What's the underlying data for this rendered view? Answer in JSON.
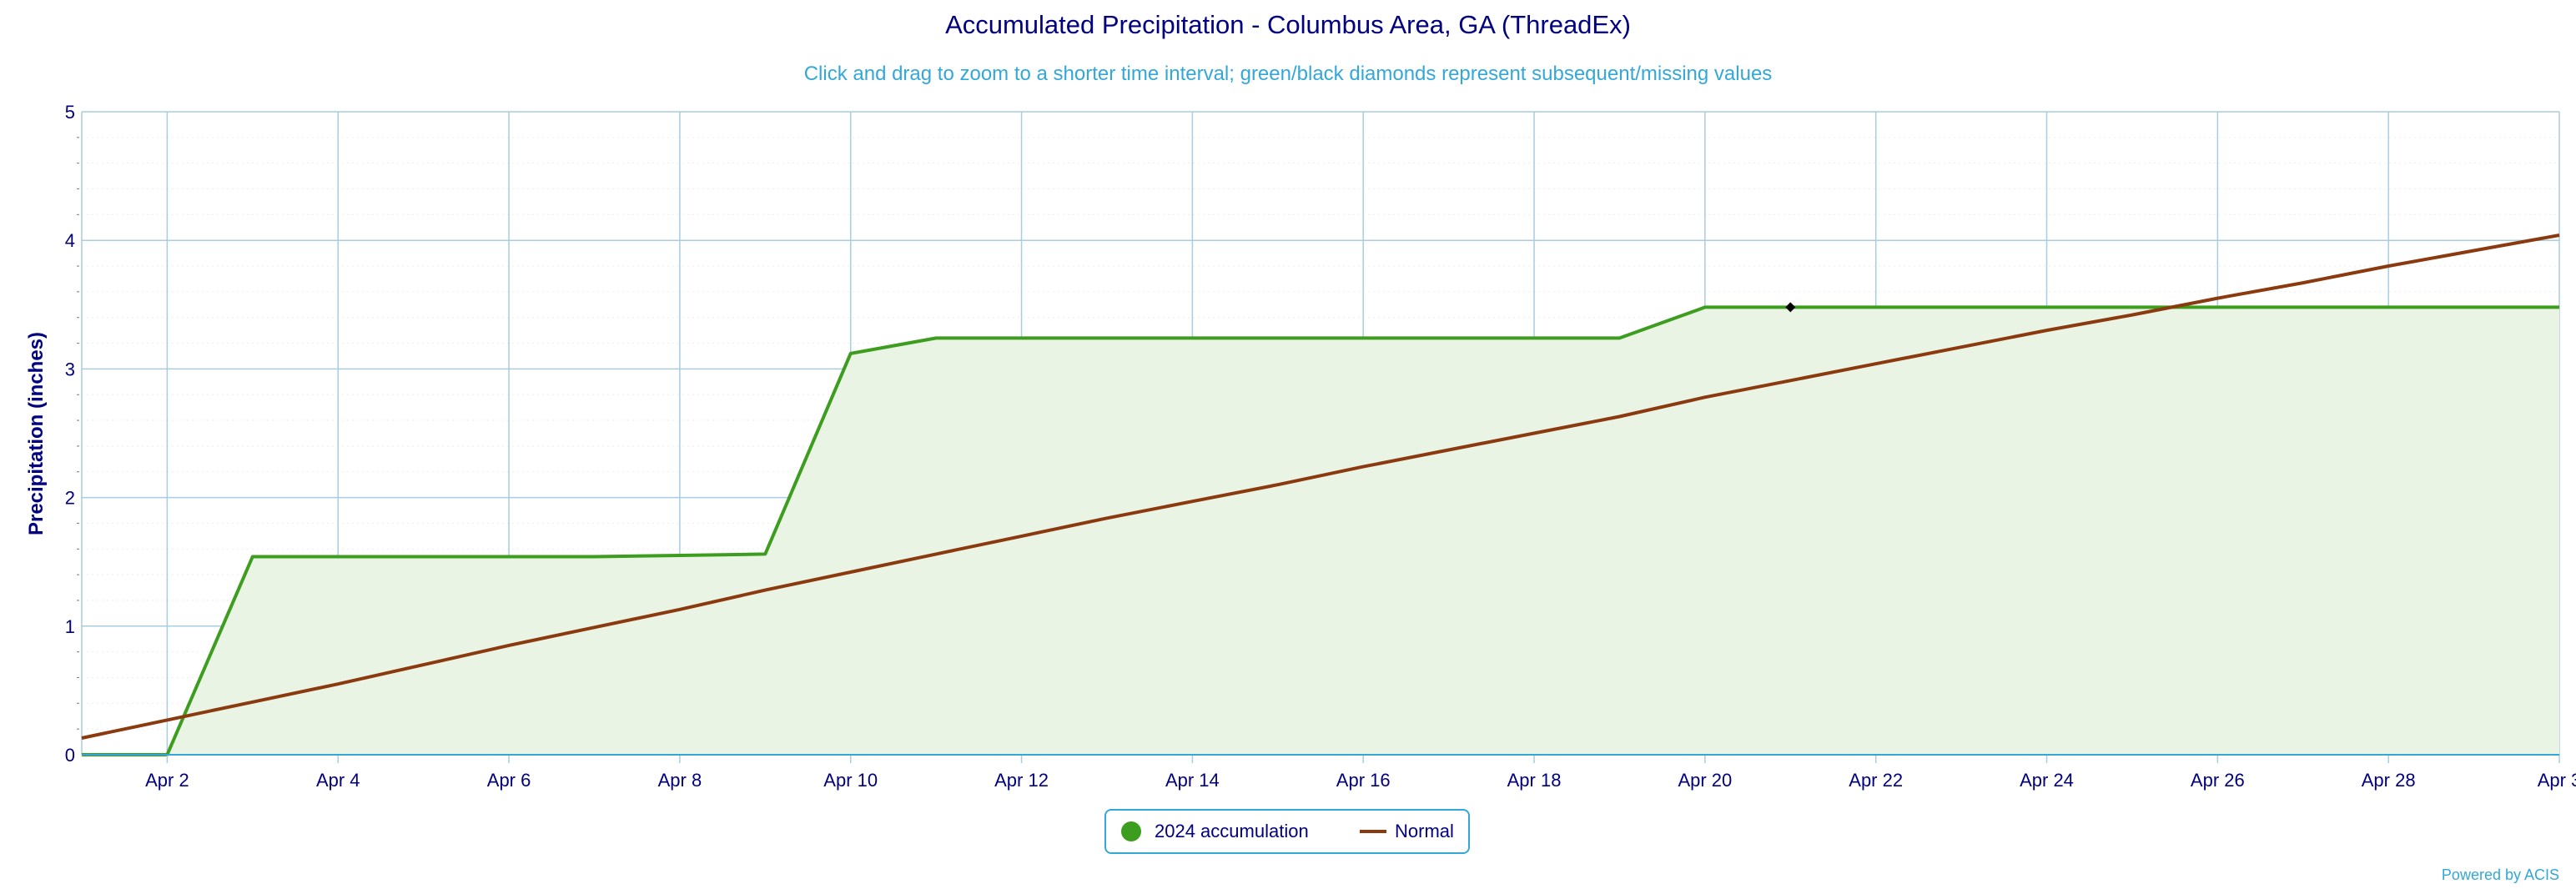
{
  "chart_data": {
    "type": "area",
    "title": "Accumulated Precipitation - Columbus Area, GA (ThreadEx)",
    "subtitle": "Click and drag to zoom to a shorter time interval; green/black diamonds represent subsequent/missing values",
    "ylabel": "Precipitation (inches)",
    "xlabel": "",
    "ylim": [
      0,
      5
    ],
    "yticks": [
      0,
      1,
      2,
      3,
      4,
      5
    ],
    "xlim": [
      1,
      30
    ],
    "xticks": [
      2,
      4,
      6,
      8,
      10,
      12,
      14,
      16,
      18,
      20,
      22,
      24,
      26,
      28,
      30
    ],
    "xtick_labels": [
      "Apr 2",
      "Apr 4",
      "Apr 6",
      "Apr 8",
      "Apr 10",
      "Apr 12",
      "Apr 14",
      "Apr 16",
      "Apr 18",
      "Apr 20",
      "Apr 22",
      "Apr 24",
      "Apr 26",
      "Apr 28",
      "Apr 3"
    ],
    "grid": true,
    "legend_position": "bottom-center",
    "series": [
      {
        "name": "2024 accumulation",
        "style": "area",
        "color": "#3c9d1f",
        "fill": "#e9f4e4",
        "x": [
          1,
          2,
          3,
          4,
          5,
          6,
          7,
          8,
          9,
          10,
          11,
          12,
          13,
          14,
          15,
          16,
          17,
          18,
          19,
          20,
          21,
          22,
          23,
          24,
          25,
          26,
          27,
          28,
          29,
          30
        ],
        "values": [
          0,
          0,
          1.54,
          1.54,
          1.54,
          1.54,
          1.54,
          1.55,
          1.56,
          3.12,
          3.24,
          3.24,
          3.24,
          3.24,
          3.24,
          3.24,
          3.24,
          3.24,
          3.24,
          3.48,
          3.48,
          3.48,
          3.48,
          3.48,
          3.48,
          3.48,
          3.48,
          3.48,
          3.48,
          3.48
        ]
      },
      {
        "name": "Normal",
        "style": "line",
        "color": "#8b3a0f",
        "x": [
          1,
          2,
          3,
          4,
          5,
          6,
          7,
          8,
          9,
          10,
          11,
          12,
          13,
          14,
          15,
          16,
          17,
          18,
          19,
          20,
          21,
          22,
          23,
          24,
          25,
          26,
          27,
          28,
          29,
          30
        ],
        "values": [
          0.13,
          0.27,
          0.41,
          0.55,
          0.7,
          0.85,
          0.99,
          1.13,
          1.28,
          1.42,
          1.56,
          1.7,
          1.84,
          1.97,
          2.1,
          2.24,
          2.37,
          2.5,
          2.63,
          2.78,
          2.91,
          3.04,
          3.17,
          3.3,
          3.42,
          3.55,
          3.67,
          3.8,
          3.92,
          4.04
        ]
      }
    ],
    "markers": [
      {
        "type": "missing",
        "shape": "diamond",
        "color": "#000000",
        "x": 21,
        "y": 3.48
      }
    ]
  },
  "legend": {
    "items": [
      {
        "label": "2024 accumulation",
        "color": "#3c9d1f"
      },
      {
        "label": "Normal",
        "color": "#8b3a0f"
      }
    ]
  },
  "credits": "Powered by ACIS"
}
